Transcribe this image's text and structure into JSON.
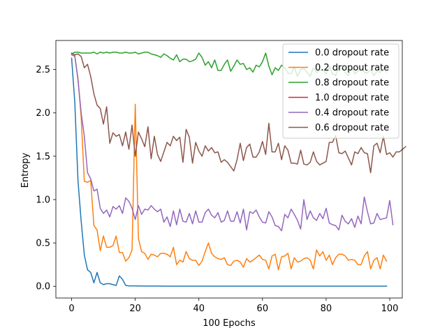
{
  "chart_data": {
    "type": "line",
    "title": "",
    "xlabel": "100 Epochs",
    "ylabel": "Entropy",
    "xlim": [
      -4.95,
      103.95
    ],
    "ylim": [
      -0.135,
      2.835
    ],
    "xticks": [
      0,
      20,
      40,
      60,
      80,
      100
    ],
    "xtick_labels": [
      "0",
      "20",
      "40",
      "60",
      "80",
      "100"
    ],
    "yticks": [
      0.0,
      0.5,
      1.0,
      1.5,
      2.0,
      2.5
    ],
    "ytick_labels": [
      "0.0",
      "0.5",
      "1.0",
      "1.5",
      "2.0",
      "2.5"
    ],
    "grid": false,
    "legend_position": "top-right",
    "series": [
      {
        "name": "0.0 dropout rate",
        "color": "#1f77b4",
        "values": [
          2.63,
          2.12,
          1.22,
          0.75,
          0.36,
          0.19,
          0.16,
          0.04,
          0.16,
          0.04,
          0.02,
          0.03,
          0.03,
          0.02,
          0.01,
          0.12,
          0.08,
          0.01,
          0.005,
          0.005,
          0.005,
          0.004,
          0.004,
          0.003,
          0.003,
          0.003,
          0.003,
          0.003,
          0.003,
          0.002,
          0.002,
          0.002,
          0.002,
          0.002,
          0.002,
          0.002,
          0.002,
          0.002,
          0.002,
          0.002,
          0.002,
          0.002,
          0.002,
          0.002,
          0.002,
          0.002,
          0.002,
          0.002,
          0.002,
          0.002,
          0.002,
          0.002,
          0.002,
          0.002,
          0.002,
          0.002,
          0.002,
          0.002,
          0.002,
          0.002,
          0.002,
          0.002,
          0.002,
          0.002,
          0.002,
          0.002,
          0.002,
          0.002,
          0.002,
          0.002,
          0.002,
          0.002,
          0.002,
          0.002,
          0.002,
          0.002,
          0.002,
          0.002,
          0.002,
          0.002,
          0.002,
          0.002,
          0.002,
          0.002,
          0.002,
          0.002,
          0.002,
          0.002,
          0.002,
          0.002,
          0.002,
          0.002,
          0.002,
          0.002,
          0.002,
          0.002,
          0.002,
          0.002,
          0.002,
          0.002
        ]
      },
      {
        "name": "0.2 dropout rate",
        "color": "#ff7f0e",
        "values": [
          2.67,
          2.65,
          2.4,
          1.95,
          1.21,
          1.2,
          1.22,
          0.7,
          0.65,
          0.41,
          0.58,
          0.45,
          0.45,
          0.47,
          0.58,
          0.39,
          0.39,
          0.29,
          0.33,
          0.42,
          2.1,
          0.55,
          0.4,
          0.38,
          0.31,
          0.37,
          0.36,
          0.34,
          0.38,
          0.38,
          0.37,
          0.34,
          0.45,
          0.25,
          0.3,
          0.28,
          0.4,
          0.32,
          0.3,
          0.3,
          0.24,
          0.29,
          0.4,
          0.5,
          0.38,
          0.34,
          0.32,
          0.31,
          0.33,
          0.25,
          0.24,
          0.29,
          0.3,
          0.28,
          0.22,
          0.32,
          0.28,
          0.3,
          0.33,
          0.36,
          0.31,
          0.3,
          0.2,
          0.35,
          0.37,
          0.19,
          0.34,
          0.35,
          0.38,
          0.2,
          0.33,
          0.28,
          0.29,
          0.32,
          0.33,
          0.3,
          0.2,
          0.42,
          0.35,
          0.4,
          0.3,
          0.36,
          0.25,
          0.33,
          0.37,
          0.37,
          0.35,
          0.3,
          0.31,
          0.3,
          0.25,
          0.25,
          0.35,
          0.4,
          0.2,
          0.3,
          0.33,
          0.2,
          0.36,
          0.29
        ]
      },
      {
        "name": "0.8 dropout rate",
        "color": "#2ca02c",
        "values": [
          2.68,
          2.7,
          2.7,
          2.69,
          2.69,
          2.69,
          2.69,
          2.7,
          2.68,
          2.7,
          2.69,
          2.7,
          2.69,
          2.7,
          2.7,
          2.69,
          2.69,
          2.7,
          2.69,
          2.69,
          2.7,
          2.68,
          2.69,
          2.7,
          2.7,
          2.68,
          2.67,
          2.66,
          2.64,
          2.68,
          2.66,
          2.63,
          2.61,
          2.67,
          2.59,
          2.62,
          2.62,
          2.59,
          2.6,
          2.62,
          2.69,
          2.64,
          2.55,
          2.59,
          2.52,
          2.61,
          2.49,
          2.49,
          2.56,
          2.61,
          2.48,
          2.54,
          2.61,
          2.56,
          2.57,
          2.5,
          2.52,
          2.47,
          2.55,
          2.53,
          2.59,
          2.69,
          2.54,
          2.44,
          2.52,
          2.49,
          2.55,
          2.52,
          2.46,
          2.45,
          2.53,
          2.42,
          2.5,
          2.51,
          2.47,
          2.42,
          2.52,
          2.47,
          2.49,
          2.5,
          2.45,
          2.54,
          2.45,
          2.43,
          2.53,
          2.5,
          2.47,
          2.43,
          2.53,
          2.45,
          2.48,
          2.52,
          2.47,
          2.46,
          2.5,
          2.43,
          2.48,
          2.47,
          2.51,
          2.47
        ]
      },
      {
        "name": "1.0 dropout rate",
        "color": "#d62728",
        "values": []
      },
      {
        "name": "0.4 dropout rate",
        "color": "#9467bd",
        "values": [
          2.67,
          2.66,
          2.38,
          2.0,
          1.73,
          1.31,
          1.24,
          1.1,
          1.12,
          0.9,
          0.84,
          0.88,
          0.8,
          0.92,
          0.89,
          0.93,
          0.84,
          1.02,
          0.98,
          0.9,
          0.77,
          0.93,
          0.83,
          0.89,
          0.88,
          0.93,
          0.89,
          0.86,
          0.89,
          0.74,
          0.8,
          0.69,
          0.87,
          0.71,
          0.89,
          0.75,
          0.74,
          0.84,
          0.72,
          0.87,
          0.74,
          0.74,
          0.85,
          0.89,
          0.82,
          0.79,
          0.85,
          0.74,
          0.76,
          0.87,
          0.75,
          0.75,
          0.86,
          0.73,
          0.89,
          0.65,
          0.86,
          0.84,
          0.88,
          0.8,
          0.74,
          0.73,
          0.86,
          0.8,
          0.7,
          0.69,
          0.64,
          0.83,
          0.79,
          0.89,
          0.83,
          0.76,
          0.66,
          1.0,
          0.77,
          0.87,
          0.79,
          0.76,
          0.84,
          0.78,
          0.9,
          0.73,
          0.71,
          0.7,
          0.65,
          0.82,
          0.75,
          0.72,
          0.78,
          0.68,
          0.81,
          0.72,
          1.03,
          0.86,
          0.72,
          0.73,
          0.84,
          0.77,
          0.78,
          0.79,
          0.99,
          0.71
        ]
      },
      {
        "name": "0.6 dropout rate",
        "color": "#8c564b",
        "values": [
          2.69,
          2.67,
          2.68,
          2.65,
          2.52,
          2.56,
          2.42,
          2.22,
          2.09,
          2.05,
          1.87,
          2.07,
          1.65,
          1.77,
          1.73,
          1.75,
          1.62,
          1.78,
          1.58,
          1.86,
          1.5,
          1.78,
          1.7,
          1.61,
          1.84,
          1.47,
          1.73,
          1.52,
          1.44,
          1.55,
          1.66,
          1.62,
          1.73,
          1.68,
          1.72,
          1.43,
          1.81,
          1.72,
          1.42,
          1.66,
          1.56,
          1.5,
          1.62,
          1.56,
          1.6,
          1.54,
          1.55,
          1.43,
          1.46,
          1.43,
          1.38,
          1.33,
          1.46,
          1.65,
          1.45,
          1.6,
          1.64,
          1.49,
          1.49,
          1.55,
          1.67,
          1.52,
          1.88,
          1.55,
          1.55,
          1.65,
          1.46,
          1.62,
          1.57,
          1.42,
          1.42,
          1.41,
          1.57,
          1.41,
          1.4,
          1.43,
          1.55,
          1.44,
          1.4,
          1.42,
          1.44,
          1.66,
          1.66,
          1.74,
          1.54,
          1.53,
          1.56,
          1.48,
          1.4,
          1.55,
          1.53,
          1.6,
          1.54,
          1.53,
          1.31,
          1.62,
          1.65,
          1.54,
          1.73,
          1.52,
          1.54,
          1.49,
          1.55,
          1.55,
          1.58,
          1.61
        ]
      }
    ]
  }
}
